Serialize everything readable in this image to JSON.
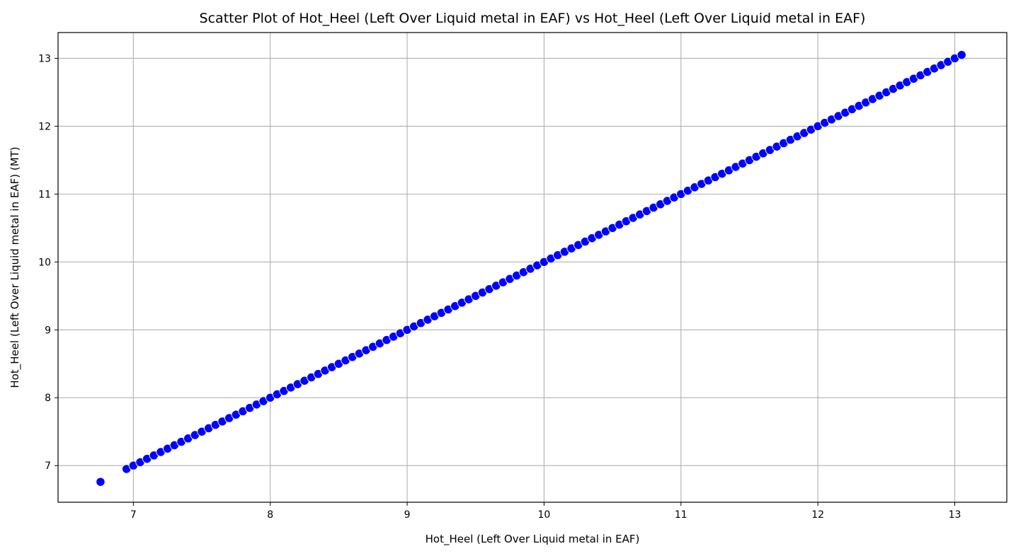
{
  "chart_data": {
    "type": "scatter",
    "title": "Scatter Plot of Hot_Heel (Left Over Liquid metal in EAF) vs Hot_Heel (Left Over Liquid metal in EAF)",
    "xlabel": "Hot_Heel (Left Over Liquid metal in EAF)",
    "ylabel": "Hot_Heel (Left Over Liquid metal in EAF) (MT)",
    "xlim": [
      6.45,
      13.38
    ],
    "ylim": [
      6.46,
      13.38
    ],
    "xticks": [
      7,
      8,
      9,
      10,
      11,
      12,
      13
    ],
    "yticks": [
      7,
      8,
      9,
      10,
      11,
      12,
      13
    ],
    "grid": true,
    "marker_color": "#0000ff",
    "marker_edge_color": "#ffffff",
    "points": {
      "x_start": 6.95,
      "x_end": 13.06,
      "step": 0.05,
      "relation": "y equals x",
      "extra_points": [
        [
          6.76,
          6.76
        ]
      ]
    }
  }
}
